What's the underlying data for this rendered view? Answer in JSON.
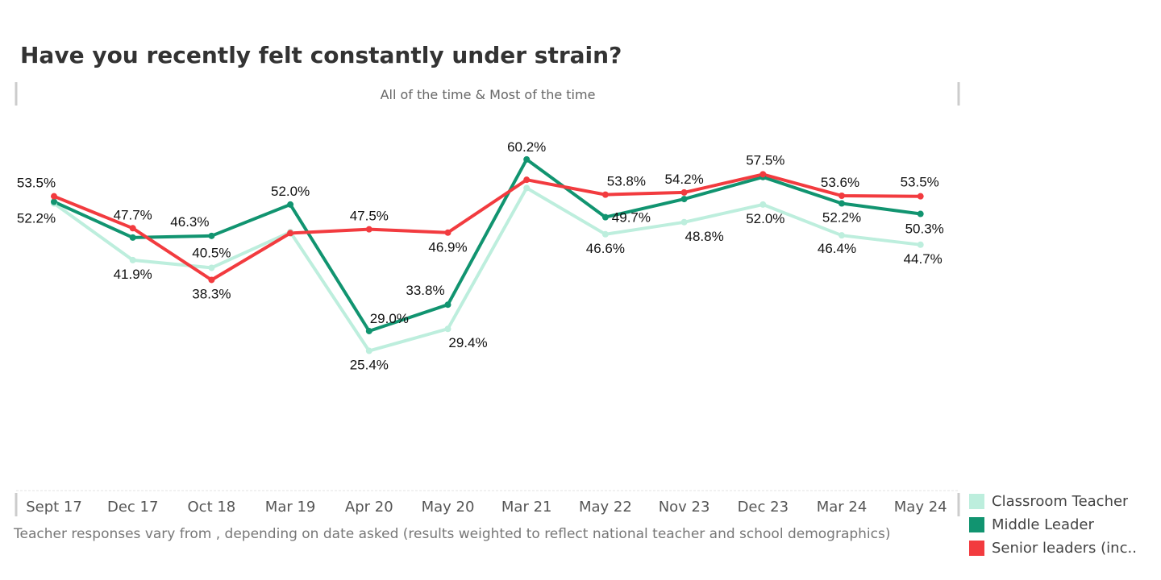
{
  "title": "Have you recently felt constantly under strain?",
  "subtitle": "All of the time & Most of the time",
  "footnote": "Teacher responses vary from , depending on date asked (results weighted to reflect national teacher and school demographics)",
  "chart_data": {
    "type": "line",
    "title": "Have you recently felt constantly under strain?",
    "subtitle": "All of the time & Most of the time",
    "categories": [
      "Sept 17",
      "Dec 17",
      "Oct 18",
      "Mar 19",
      "Apr 20",
      "May 20",
      "Mar 21",
      "May 22",
      "Nov 23",
      "Dec 23",
      "Mar 24",
      "May 24"
    ],
    "ylim": [
      0,
      70
    ],
    "grid": false,
    "legend_position": "bottom-right",
    "series": [
      {
        "name": "Classroom Teacher",
        "color": "#BDEEDD",
        "values": [
          52.2,
          41.9,
          40.5,
          47.0,
          25.4,
          29.4,
          55.0,
          46.6,
          48.8,
          52.0,
          46.4,
          44.7
        ],
        "labels": [
          "52.2%",
          "41.9%",
          "40.5%",
          "",
          "25.4%",
          "29.4%",
          "",
          "46.6%",
          "48.8%",
          "52.0%",
          "46.4%",
          "44.7%"
        ]
      },
      {
        "name": "Middle Leader",
        "color": "#119470",
        "values": [
          52.5,
          46.0,
          46.3,
          52.0,
          29.0,
          33.8,
          60.2,
          49.7,
          53.0,
          57.0,
          52.2,
          50.3
        ],
        "labels": [
          "",
          "",
          "46.3%",
          "52.0%",
          "29.0%",
          "33.8%",
          "60.2%",
          "49.7%",
          "",
          "",
          "52.2%",
          "50.3%"
        ]
      },
      {
        "name": "Senior leaders (inc..",
        "color": "#F23B3F",
        "values": [
          53.5,
          47.7,
          38.3,
          46.8,
          47.5,
          46.9,
          56.5,
          53.8,
          54.2,
          57.5,
          53.6,
          53.5
        ],
        "labels": [
          "53.5%",
          "47.7%",
          "38.3%",
          "",
          "47.5%",
          "46.9%",
          "",
          "53.8%",
          "54.2%",
          "57.5%",
          "53.6%",
          "53.5%"
        ]
      }
    ]
  }
}
